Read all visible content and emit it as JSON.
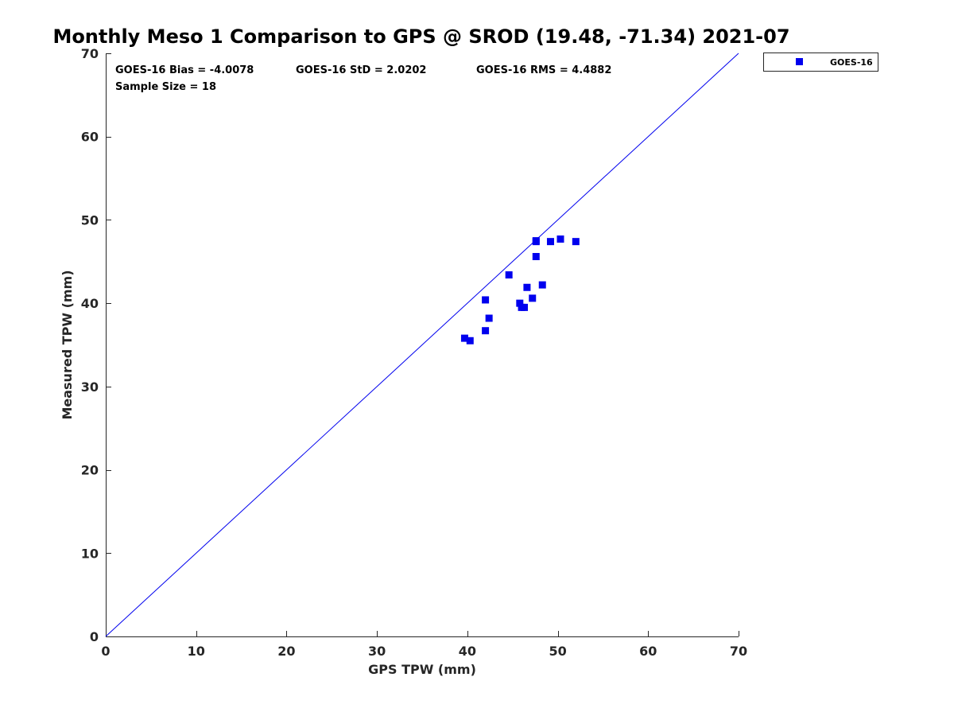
{
  "chart_data": {
    "type": "scatter",
    "title": "Monthly Meso 1 Comparison to GPS @ SROD (19.48, -71.34) 2021-07",
    "xlabel": "GPS TPW (mm)",
    "ylabel": "Measured TPW (mm)",
    "xlim": [
      0,
      70
    ],
    "ylim": [
      0,
      70
    ],
    "xticks": [
      0,
      10,
      20,
      30,
      40,
      50,
      60,
      70
    ],
    "yticks": [
      0,
      10,
      20,
      30,
      40,
      50,
      60,
      70
    ],
    "grid": false,
    "legend_position": "outside-top-right",
    "colors": {
      "series": "#0000ee",
      "axis": "#262626"
    },
    "reference_line": {
      "name": "1:1 line",
      "x": [
        0,
        70
      ],
      "y": [
        0,
        70
      ]
    },
    "series": [
      {
        "name": "GOES-16",
        "marker": "square",
        "points": [
          {
            "x": 39.7,
            "y": 35.8
          },
          {
            "x": 40.3,
            "y": 35.5
          },
          {
            "x": 42.0,
            "y": 36.7
          },
          {
            "x": 42.4,
            "y": 38.2
          },
          {
            "x": 42.0,
            "y": 40.4
          },
          {
            "x": 44.6,
            "y": 43.4
          },
          {
            "x": 45.8,
            "y": 40.0
          },
          {
            "x": 46.0,
            "y": 39.5
          },
          {
            "x": 46.3,
            "y": 39.5
          },
          {
            "x": 46.6,
            "y": 41.9
          },
          {
            "x": 47.2,
            "y": 40.6
          },
          {
            "x": 47.6,
            "y": 45.6
          },
          {
            "x": 47.6,
            "y": 47.4
          },
          {
            "x": 48.3,
            "y": 42.2
          },
          {
            "x": 49.2,
            "y": 47.4
          },
          {
            "x": 50.3,
            "y": 47.7
          },
          {
            "x": 52.0,
            "y": 47.4
          },
          {
            "x": 47.6,
            "y": 47.5
          }
        ]
      }
    ],
    "annotations": {
      "bias": "GOES-16 Bias = -4.0078",
      "std": "GOES-16 StD = 2.0202",
      "rms": "GOES-16 RMS = 4.4882",
      "sample_size": "Sample Size = 18"
    }
  }
}
